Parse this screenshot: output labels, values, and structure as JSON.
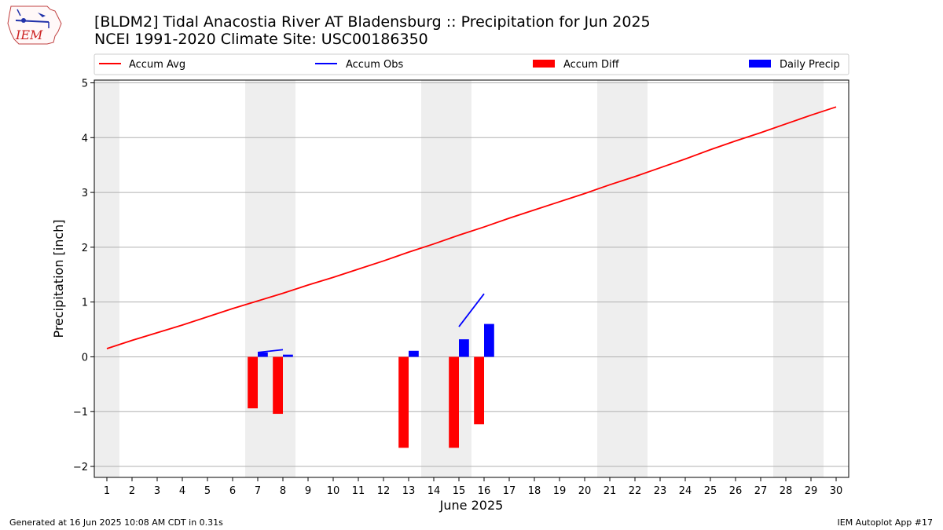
{
  "header": {
    "title_line1": "[BLDM2] Tidal Anacostia River  AT Bladensburg :: Precipitation for Jun 2025",
    "title_line2": "NCEI 1991-2020 Climate Site: USC00186350",
    "logo_text": "IEM"
  },
  "footer": {
    "generated": "Generated at 16 Jun 2025 10:08 AM CDT in 0.31s",
    "app": "IEM Autoplot App #17"
  },
  "colors": {
    "accum_avg": "#ff0000",
    "accum_obs": "#0000ff",
    "accum_diff": "#ff0000",
    "daily_precip": "#0000ff",
    "weekend_shade": "#eeeeee",
    "grid": "#b0b0b0"
  },
  "chart_data": {
    "type": "bar",
    "xlabel": "June 2025",
    "ylabel": "Precipitation [inch]",
    "xlim": [
      0.5,
      30.5
    ],
    "ylim": [
      -2.2,
      5.05
    ],
    "x_ticks": [
      1,
      2,
      3,
      4,
      5,
      6,
      7,
      8,
      9,
      10,
      11,
      12,
      13,
      14,
      15,
      16,
      17,
      18,
      19,
      20,
      21,
      22,
      23,
      24,
      25,
      26,
      27,
      28,
      29,
      30
    ],
    "y_ticks": [
      -2,
      -1,
      0,
      1,
      2,
      3,
      4,
      5
    ],
    "y_tick_labels": [
      "−2",
      "−1",
      "0",
      "1",
      "2",
      "3",
      "4",
      "5"
    ],
    "grid": "horizontal",
    "legend_position": "top",
    "weekend_spans": [
      [
        0.5,
        1.5
      ],
      [
        6.5,
        8.5
      ],
      [
        13.5,
        15.5
      ],
      [
        20.5,
        22.5
      ],
      [
        27.5,
        29.5
      ]
    ],
    "legend": [
      "Accum Avg",
      "Accum Obs",
      "Accum Diff",
      "Daily Precip"
    ],
    "series": [
      {
        "name": "Accum Avg",
        "kind": "line",
        "x": [
          1,
          2,
          3,
          4,
          5,
          6,
          7,
          8,
          9,
          10,
          11,
          12,
          13,
          14,
          15,
          16,
          17,
          18,
          19,
          20,
          21,
          22,
          23,
          24,
          25,
          26,
          27,
          28,
          29,
          30
        ],
        "values": [
          0.15,
          0.3,
          0.44,
          0.58,
          0.73,
          0.88,
          1.02,
          1.16,
          1.31,
          1.45,
          1.6,
          1.75,
          1.91,
          2.06,
          2.22,
          2.37,
          2.53,
          2.68,
          2.83,
          2.98,
          3.14,
          3.29,
          3.45,
          3.61,
          3.78,
          3.94,
          4.09,
          4.25,
          4.41,
          4.56
        ]
      },
      {
        "name": "Accum Obs",
        "kind": "line_segments",
        "segments": [
          {
            "x": [
              7,
              8
            ],
            "values": [
              0.08,
              0.13
            ]
          },
          {
            "x": [
              15,
              16
            ],
            "values": [
              0.55,
              1.15
            ]
          }
        ]
      },
      {
        "name": "Accum Diff",
        "kind": "bar",
        "x": [
          7,
          8,
          13,
          15,
          16
        ],
        "values": [
          -0.94,
          -1.04,
          -1.66,
          -1.66,
          -1.23
        ]
      },
      {
        "name": "Daily Precip",
        "kind": "bar",
        "x": [
          7,
          8,
          13,
          15,
          16
        ],
        "values": [
          0.08,
          0.04,
          0.11,
          0.32,
          0.6
        ]
      }
    ]
  }
}
